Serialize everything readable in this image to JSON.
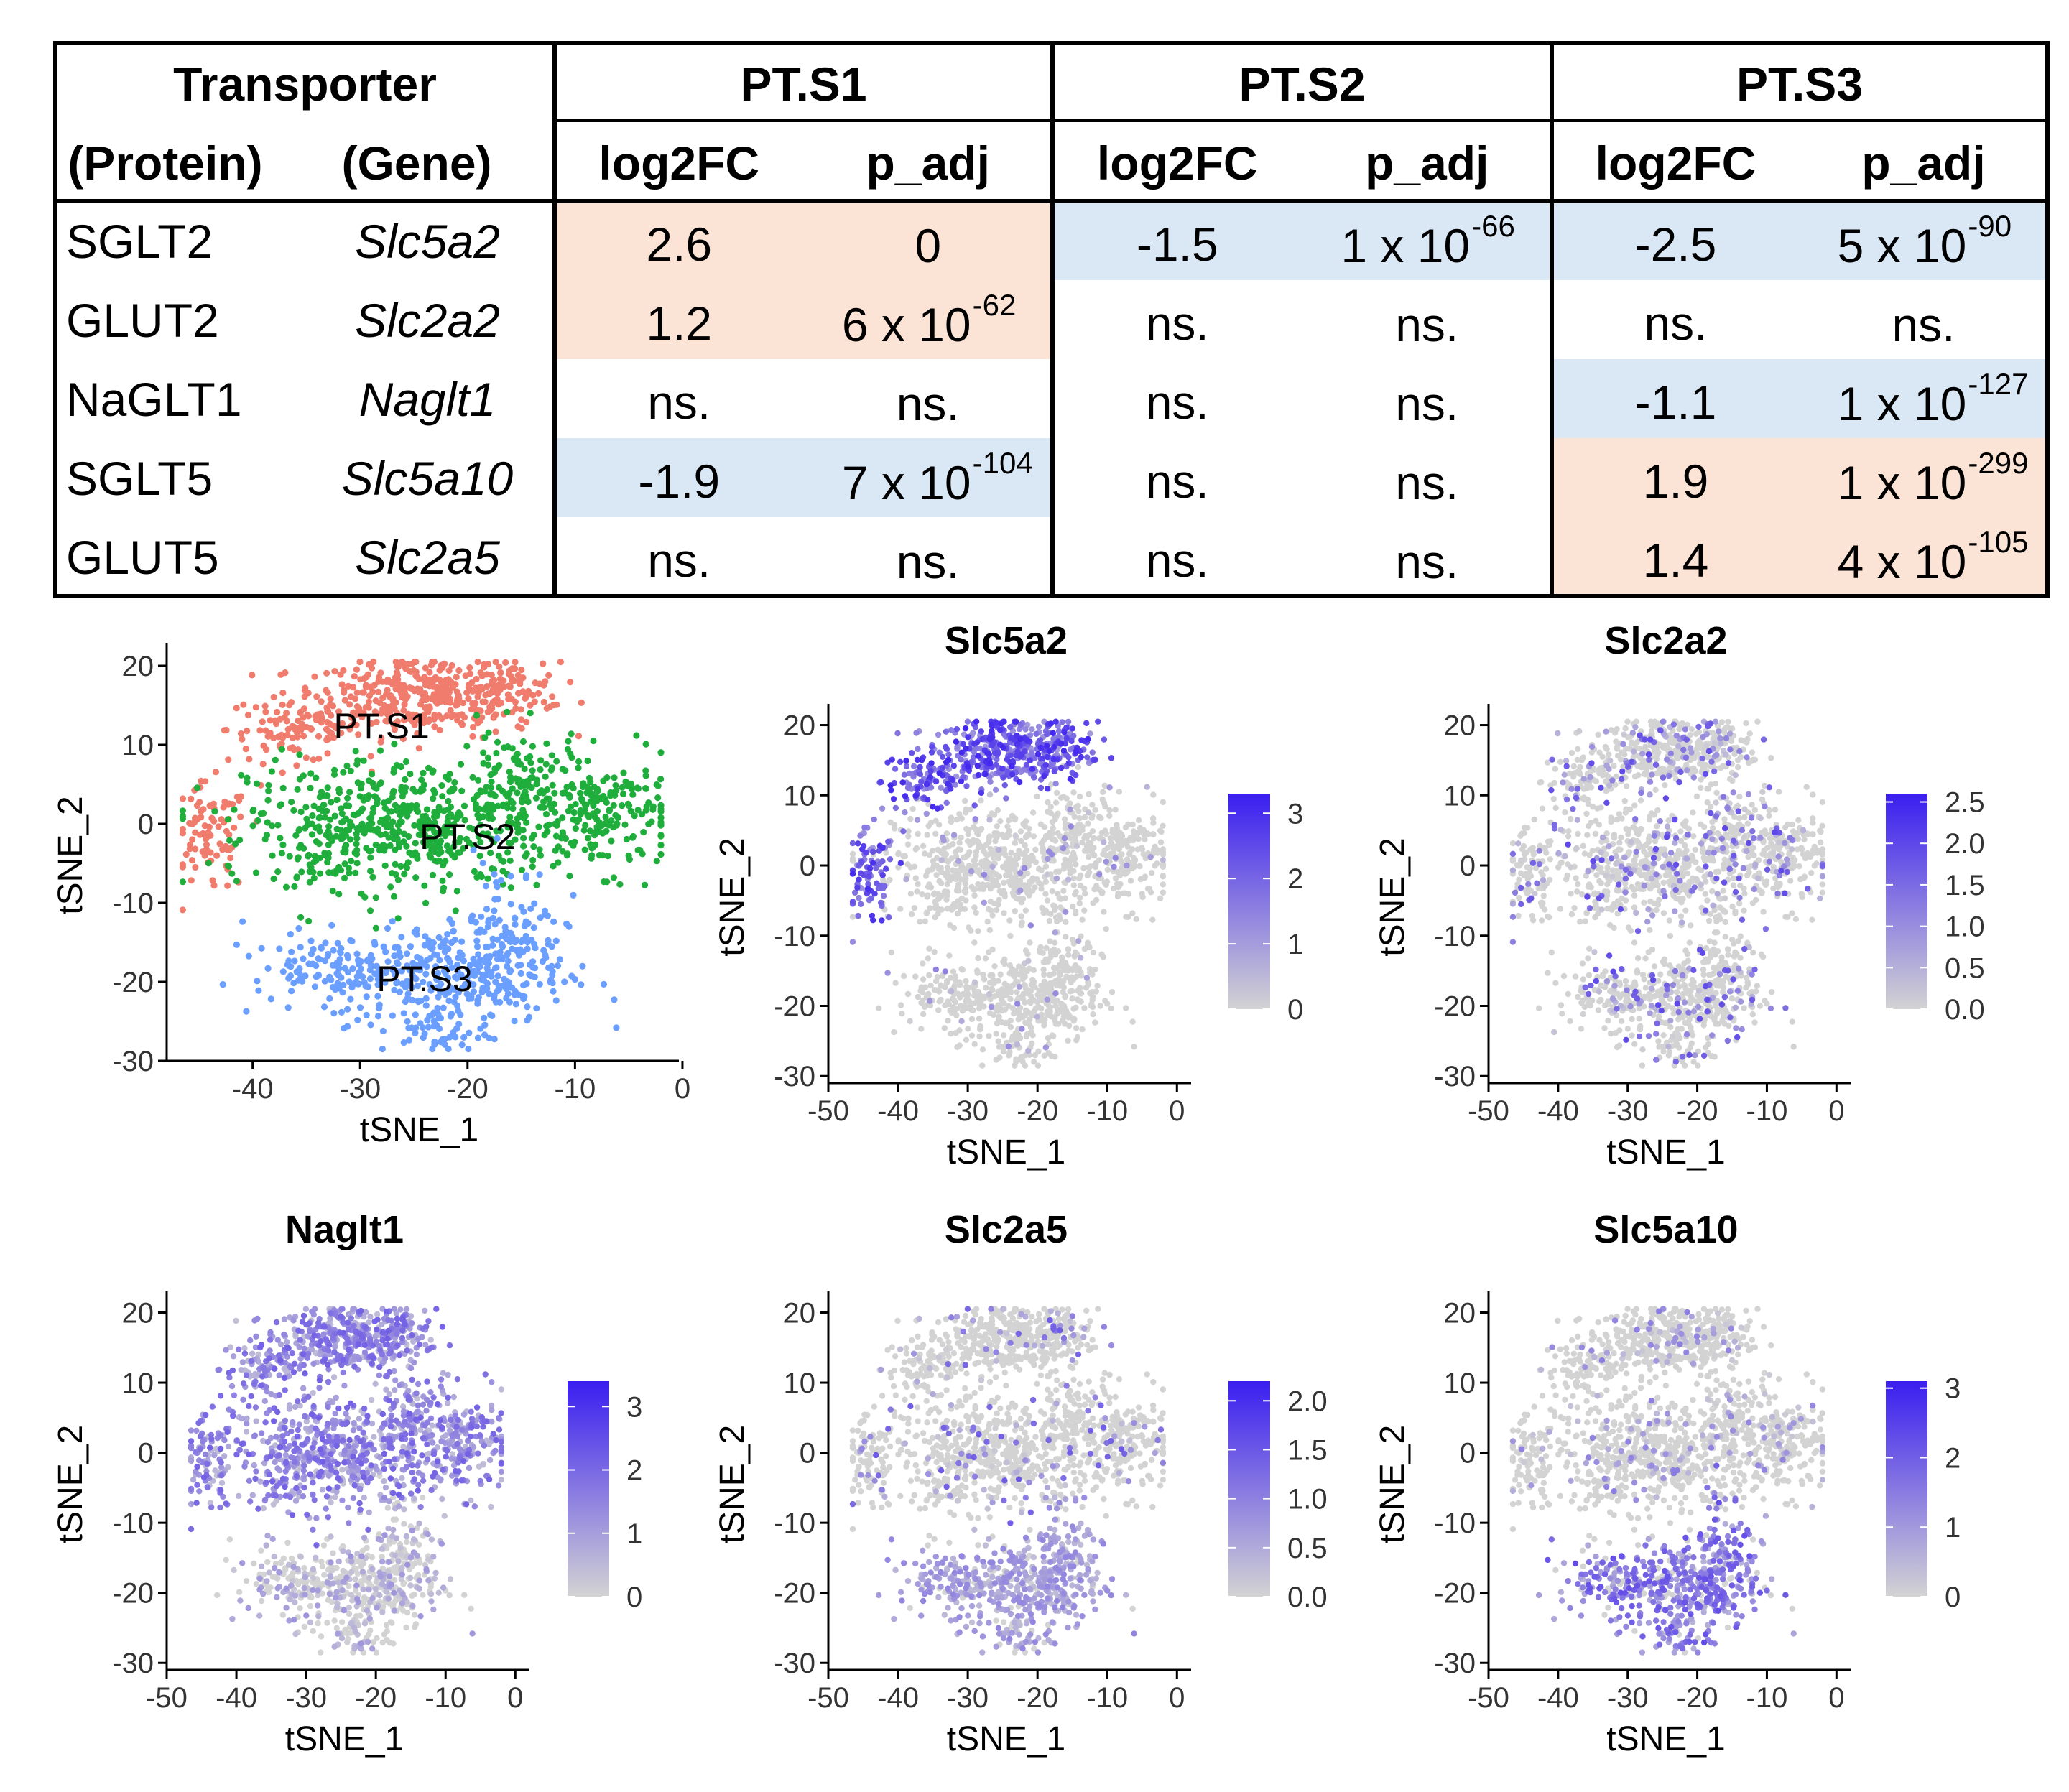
{
  "table": {
    "header_transporter": "Transporter",
    "header_protein": "(Protein)",
    "header_gene": "(Gene)",
    "segments": [
      "PT.S1",
      "PT.S2",
      "PT.S3"
    ],
    "col_log2fc": "log2FC",
    "col_padj": "p_adj",
    "colors": {
      "up": "#fbe3d5",
      "down": "#dae8f5"
    },
    "rows": [
      {
        "protein": "SGLT2",
        "gene": "Slc5a2",
        "cells": [
          {
            "fc": "2.6",
            "p": "0",
            "exp": "",
            "shade": "up"
          },
          {
            "fc": "-1.5",
            "p": "1 x 10",
            "exp": "-66",
            "shade": "down"
          },
          {
            "fc": "-2.5",
            "p": "5 x 10",
            "exp": "-90",
            "shade": "down"
          }
        ]
      },
      {
        "protein": "GLUT2",
        "gene": "Slc2a2",
        "cells": [
          {
            "fc": "1.2",
            "p": "6 x 10",
            "exp": "-62",
            "shade": "up"
          },
          {
            "fc": "ns.",
            "p": "ns.",
            "exp": "",
            "shade": ""
          },
          {
            "fc": "ns.",
            "p": "ns.",
            "exp": "",
            "shade": ""
          }
        ]
      },
      {
        "protein": "NaGLT1",
        "gene": "Naglt1",
        "cells": [
          {
            "fc": "ns.",
            "p": "ns.",
            "exp": "",
            "shade": ""
          },
          {
            "fc": "ns.",
            "p": "ns.",
            "exp": "",
            "shade": ""
          },
          {
            "fc": "-1.1",
            "p": "1  x 10",
            "exp": "-127",
            "shade": "down"
          }
        ]
      },
      {
        "protein": "SGLT5",
        "gene": "Slc5a10",
        "cells": [
          {
            "fc": "-1.9",
            "p": "7 x 10",
            "exp": "-104",
            "shade": "down"
          },
          {
            "fc": "ns.",
            "p": "ns.",
            "exp": "",
            "shade": ""
          },
          {
            "fc": "1.9",
            "p": "1 x 10",
            "exp": "-299",
            "shade": "up"
          }
        ]
      },
      {
        "protein": "GLUT5",
        "gene": "Slc2a5",
        "cells": [
          {
            "fc": "ns.",
            "p": "ns.",
            "exp": "",
            "shade": ""
          },
          {
            "fc": "ns.",
            "p": "ns.",
            "exp": "",
            "shade": ""
          },
          {
            "fc": "1.4",
            "p": "4 x 10",
            "exp": "-105",
            "shade": "up"
          }
        ]
      }
    ]
  },
  "chart_data": [
    {
      "type": "scatter",
      "title": "",
      "xlabel": "tSNE_1",
      "ylabel": "tSNE_2",
      "xlim": [
        -48,
        -1
      ],
      "ylim": [
        -30,
        22
      ],
      "xticks": [
        -40,
        -30,
        -20,
        -10,
        0
      ],
      "yticks": [
        20,
        10,
        0,
        -10,
        -20,
        -30
      ],
      "cluster_colors": {
        "PT.S1": "#f07c6e",
        "PT.S2": "#1fae3c",
        "PT.S3": "#6b9fff"
      },
      "cluster_labels": [
        {
          "text": "PT.S1",
          "x": -28,
          "y": 12
        },
        {
          "text": "PT.S2",
          "x": -20,
          "y": -2
        },
        {
          "text": "PT.S3",
          "x": -24,
          "y": -20
        }
      ],
      "clusters": [
        {
          "name": "PT.S1",
          "blobs": [
            [
              -23,
              16,
              7,
              3.5,
              260
            ],
            [
              -36,
              12,
              4.5,
              3,
              110
            ],
            [
              -44,
              -2,
              2.6,
              5,
              85
            ],
            [
              -27,
              17,
              5,
              3,
              90
            ],
            [
              -17,
              17,
              4,
              3,
              70
            ]
          ]
        },
        {
          "name": "PT.S2",
          "blobs": [
            [
              -25,
              0,
              11,
              6,
              520
            ],
            [
              -7,
              1,
              4.5,
              5,
              170
            ],
            [
              -15,
              5,
              4,
              5,
              110
            ],
            [
              -33,
              -2,
              5,
              4,
              90
            ]
          ]
        },
        {
          "name": "PT.S3",
          "blobs": [
            [
              -22,
              -19,
              8,
              4.5,
              320
            ],
            [
              -16,
              -14,
              3.5,
              7,
              110
            ],
            [
              -33,
              -18,
              5,
              2.5,
              90
            ],
            [
              -23,
              -26,
              3.5,
              2.5,
              50
            ]
          ]
        }
      ]
    },
    {
      "type": "scatter",
      "title": "Slc5a2",
      "xlabel": "tSNE_1",
      "ylabel": "tSNE_2",
      "xlim": [
        -50,
        1
      ],
      "ylim": [
        -31,
        22
      ],
      "xticks": [
        -50,
        -40,
        -30,
        -20,
        -10,
        0
      ],
      "yticks": [
        20,
        10,
        0,
        -10,
        -20,
        -30
      ],
      "legend_ticks": [
        3,
        2,
        1,
        0
      ],
      "legend_max": 3.3,
      "expression_region": "PT.S1",
      "expression_level": 2.6
    },
    {
      "type": "scatter",
      "title": "Slc2a2",
      "xlabel": "tSNE_1",
      "ylabel": "tSNE_2",
      "xlim": [
        -50,
        1
      ],
      "ylim": [
        -31,
        22
      ],
      "xticks": [
        -50,
        -40,
        -30,
        -20,
        -10,
        0
      ],
      "yticks": [
        20,
        10,
        0,
        -10,
        -20,
        -30
      ],
      "legend_ticks": [
        "2.5",
        "2.0",
        "1.5",
        "1.0",
        "0.5",
        "0.0"
      ],
      "legend_max": 2.6,
      "expression_region": "sparse",
      "expression_level": 1.2
    },
    {
      "type": "scatter",
      "title": "Naglt1",
      "xlabel": "tSNE_1",
      "ylabel": "tSNE_2",
      "xlim": [
        -50,
        1
      ],
      "ylim": [
        -31,
        22
      ],
      "xticks": [
        -50,
        -40,
        -30,
        -20,
        -10,
        0
      ],
      "yticks": [
        20,
        10,
        0,
        -10,
        -20,
        -30
      ],
      "legend_ticks": [
        3,
        2,
        1,
        0
      ],
      "legend_max": 3.4,
      "expression_region": "PT.S1+PT.S2",
      "expression_level": 1.8
    },
    {
      "type": "scatter",
      "title": "Slc2a5",
      "xlabel": "tSNE_1",
      "ylabel": "tSNE_2",
      "xlim": [
        -50,
        1
      ],
      "ylim": [
        -31,
        22
      ],
      "xticks": [
        -50,
        -40,
        -30,
        -20,
        -10,
        0
      ],
      "yticks": [
        20,
        10,
        0,
        -10,
        -20,
        -30
      ],
      "legend_ticks": [
        "2.0",
        "1.5",
        "1.0",
        "0.5",
        "0.0"
      ],
      "legend_max": 2.2,
      "expression_region": "PT.S3",
      "expression_level": 0.8
    },
    {
      "type": "scatter",
      "title": "Slc5a10",
      "xlabel": "tSNE_1",
      "ylabel": "tSNE_2",
      "xlim": [
        -50,
        1
      ],
      "ylim": [
        -31,
        22
      ],
      "xticks": [
        -50,
        -40,
        -30,
        -20,
        -10,
        0
      ],
      "yticks": [
        20,
        10,
        0,
        -10,
        -20,
        -30
      ],
      "legend_ticks": [
        3,
        2,
        1,
        0
      ],
      "legend_max": 3.1,
      "expression_region": "PT.S3",
      "expression_level": 1.9
    }
  ]
}
